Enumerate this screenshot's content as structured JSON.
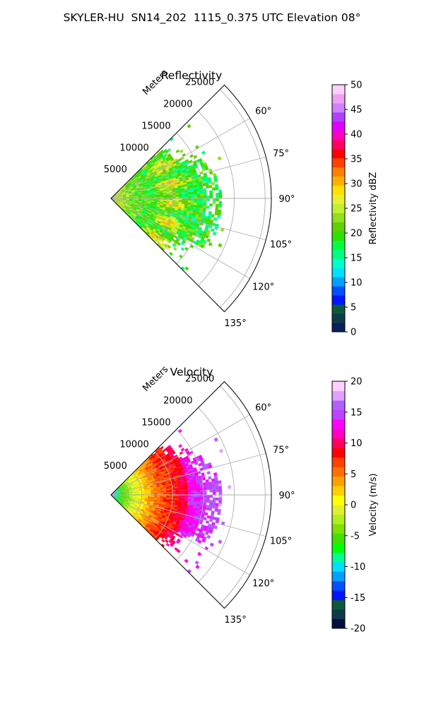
{
  "suptitle": "SKYLER-HU  SN14_202  1115_0.375 UTC Elevation 08°",
  "range_label": "Meters",
  "chart_data": [
    {
      "type": "heatmap",
      "projection": "polar-sector",
      "title": "Reflectivity",
      "azimuth_range_deg": [
        45,
        135
      ],
      "azimuth_ticks_deg": [
        60,
        75,
        90,
        105,
        120,
        135
      ],
      "range_ticks_m": [
        5000,
        10000,
        15000,
        20000,
        25000
      ],
      "range_max_m": 26000,
      "data_extent_m": 18000,
      "grid": true,
      "colorbar": {
        "label": "Reflectivity dBZ",
        "min": 0,
        "max": 50,
        "ticks": [
          0,
          5,
          10,
          15,
          20,
          25,
          30,
          35,
          40,
          45,
          50
        ]
      },
      "field_description": "Mostly 15-25 dBZ with bands of 25-35 dBZ near the radar and around 8-11 km range"
    },
    {
      "type": "heatmap",
      "projection": "polar-sector",
      "title": "Velocity",
      "azimuth_range_deg": [
        45,
        135
      ],
      "azimuth_ticks_deg": [
        60,
        75,
        90,
        105,
        120,
        135
      ],
      "range_ticks_m": [
        5000,
        10000,
        15000,
        20000,
        25000
      ],
      "range_max_m": 26000,
      "data_extent_m": 18000,
      "grid": true,
      "colorbar": {
        "label": "Velocity (m/s)",
        "min": -20,
        "max": 20,
        "ticks": [
          -20,
          -15,
          -10,
          -5,
          0,
          5,
          10,
          15,
          20
        ]
      },
      "field_description": "Velocity increases with range from about -10 m/s near the radar to about +15 m/s beyond 12 km"
    }
  ],
  "colormaps": {
    "reflectivity": [
      "#0a1f5c",
      "#0d3b4a",
      "#0d5a3a",
      "#0014ff",
      "#0050ff",
      "#00a0ff",
      "#00e0ff",
      "#00ffcc",
      "#00ff80",
      "#00ff40",
      "#30e000",
      "#60d000",
      "#90e020",
      "#c0f030",
      "#e8f030",
      "#ffe000",
      "#ffb000",
      "#ff8000",
      "#ff4000",
      "#ff0000",
      "#ff0060",
      "#ff00c0",
      "#e000ff",
      "#b040ff",
      "#d080ff",
      "#f0a0f0",
      "#ffd0ff"
    ],
    "velocity": [
      "#000d40",
      "#0d3b4a",
      "#0d5a3a",
      "#0014ff",
      "#0050ff",
      "#00a0ff",
      "#00e0ff",
      "#00ff90",
      "#00ff00",
      "#40e000",
      "#80e000",
      "#b0f020",
      "#e0f030",
      "#ffff00",
      "#ffd000",
      "#ffa000",
      "#ff7000",
      "#ff4000",
      "#ff0000",
      "#ff0060",
      "#ff00c0",
      "#ff00ff",
      "#c040ff",
      "#b060ff",
      "#e0a0ff",
      "#ffd0ff"
    ]
  }
}
